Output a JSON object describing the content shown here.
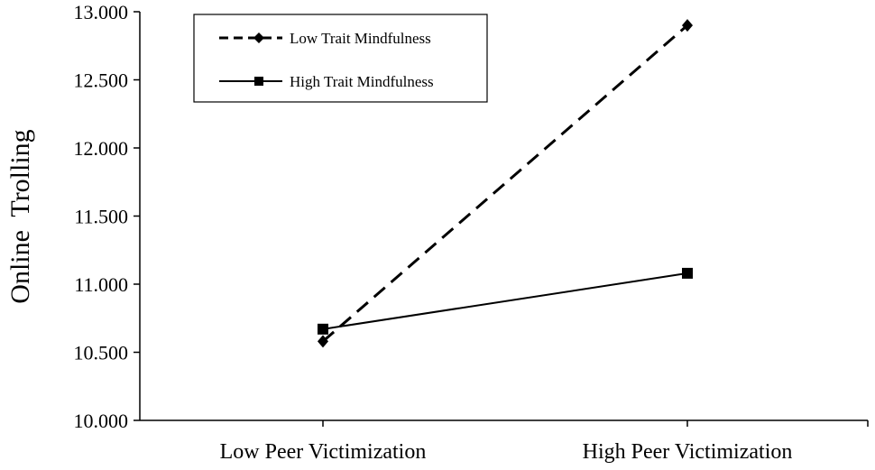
{
  "chart_data": {
    "type": "line",
    "title": "",
    "xlabel": "",
    "ylabel": "Online  Trolling",
    "categories": [
      "Low Peer Victimization",
      "High Peer Victimization"
    ],
    "y_ticks": [
      "10.000",
      "10.500",
      "11.000",
      "11.500",
      "12.000",
      "12.500",
      "13.000"
    ],
    "ylim": [
      10.0,
      13.0
    ],
    "grid": false,
    "legend_position": "top-left",
    "series": [
      {
        "name": "Low Trait Mindfulness",
        "values": [
          10.58,
          12.9
        ],
        "line_style": "dashed",
        "marker": "diamond",
        "color": "#000000"
      },
      {
        "name": "High Trait Mindfulness",
        "values": [
          10.67,
          11.08
        ],
        "line_style": "solid",
        "marker": "square",
        "color": "#000000"
      }
    ]
  }
}
